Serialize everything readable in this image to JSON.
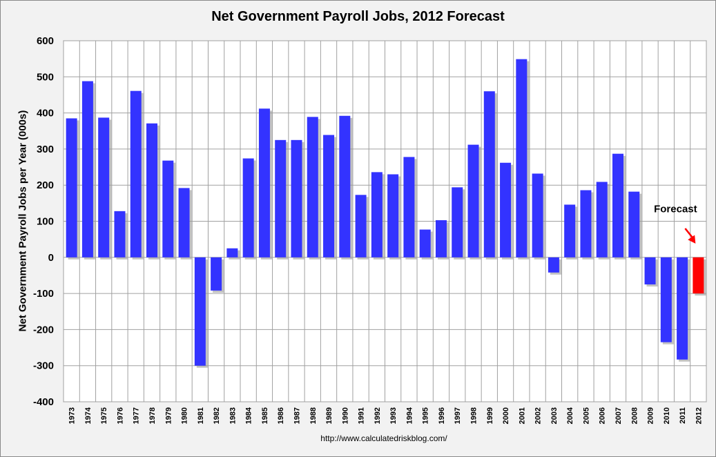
{
  "chart_data": {
    "type": "bar",
    "title": "Net Government Payroll Jobs, 2012 Forecast",
    "ylabel": "Net Government Payroll Jobs per Year (000s)",
    "xlabel": "",
    "ylim": [
      -400,
      600
    ],
    "yticks": [
      -400,
      -300,
      -200,
      -100,
      0,
      100,
      200,
      300,
      400,
      500,
      600
    ],
    "grid": true,
    "categories": [
      "1973",
      "1974",
      "1975",
      "1976",
      "1977",
      "1978",
      "1979",
      "1980",
      "1981",
      "1982",
      "1983",
      "1984",
      "1985",
      "1986",
      "1987",
      "1988",
      "1989",
      "1990",
      "1991",
      "1992",
      "1993",
      "1994",
      "1995",
      "1996",
      "1997",
      "1998",
      "1999",
      "2000",
      "2001",
      "2002",
      "2003",
      "2004",
      "2005",
      "2006",
      "2007",
      "2008",
      "2009",
      "2010",
      "2011",
      "2012"
    ],
    "values": [
      385,
      488,
      387,
      128,
      461,
      371,
      268,
      192,
      -300,
      -92,
      25,
      274,
      412,
      325,
      325,
      389,
      339,
      392,
      173,
      236,
      230,
      278,
      77,
      103,
      194,
      312,
      460,
      262,
      549,
      232,
      -42,
      146,
      186,
      209,
      287,
      182,
      -75,
      -235,
      -283,
      -100
    ],
    "colors": {
      "actual": "#3333ff",
      "forecast": "#ff0000",
      "shadow": "#9a9a9a",
      "plot_background": "#ffffff",
      "gridline": "#a0a0a0"
    },
    "forecast_category": "2012",
    "annotation": {
      "text": "Forecast",
      "arrow_color": "#ff0000"
    }
  },
  "footer": "http://www.calculatedriskblog.com/"
}
